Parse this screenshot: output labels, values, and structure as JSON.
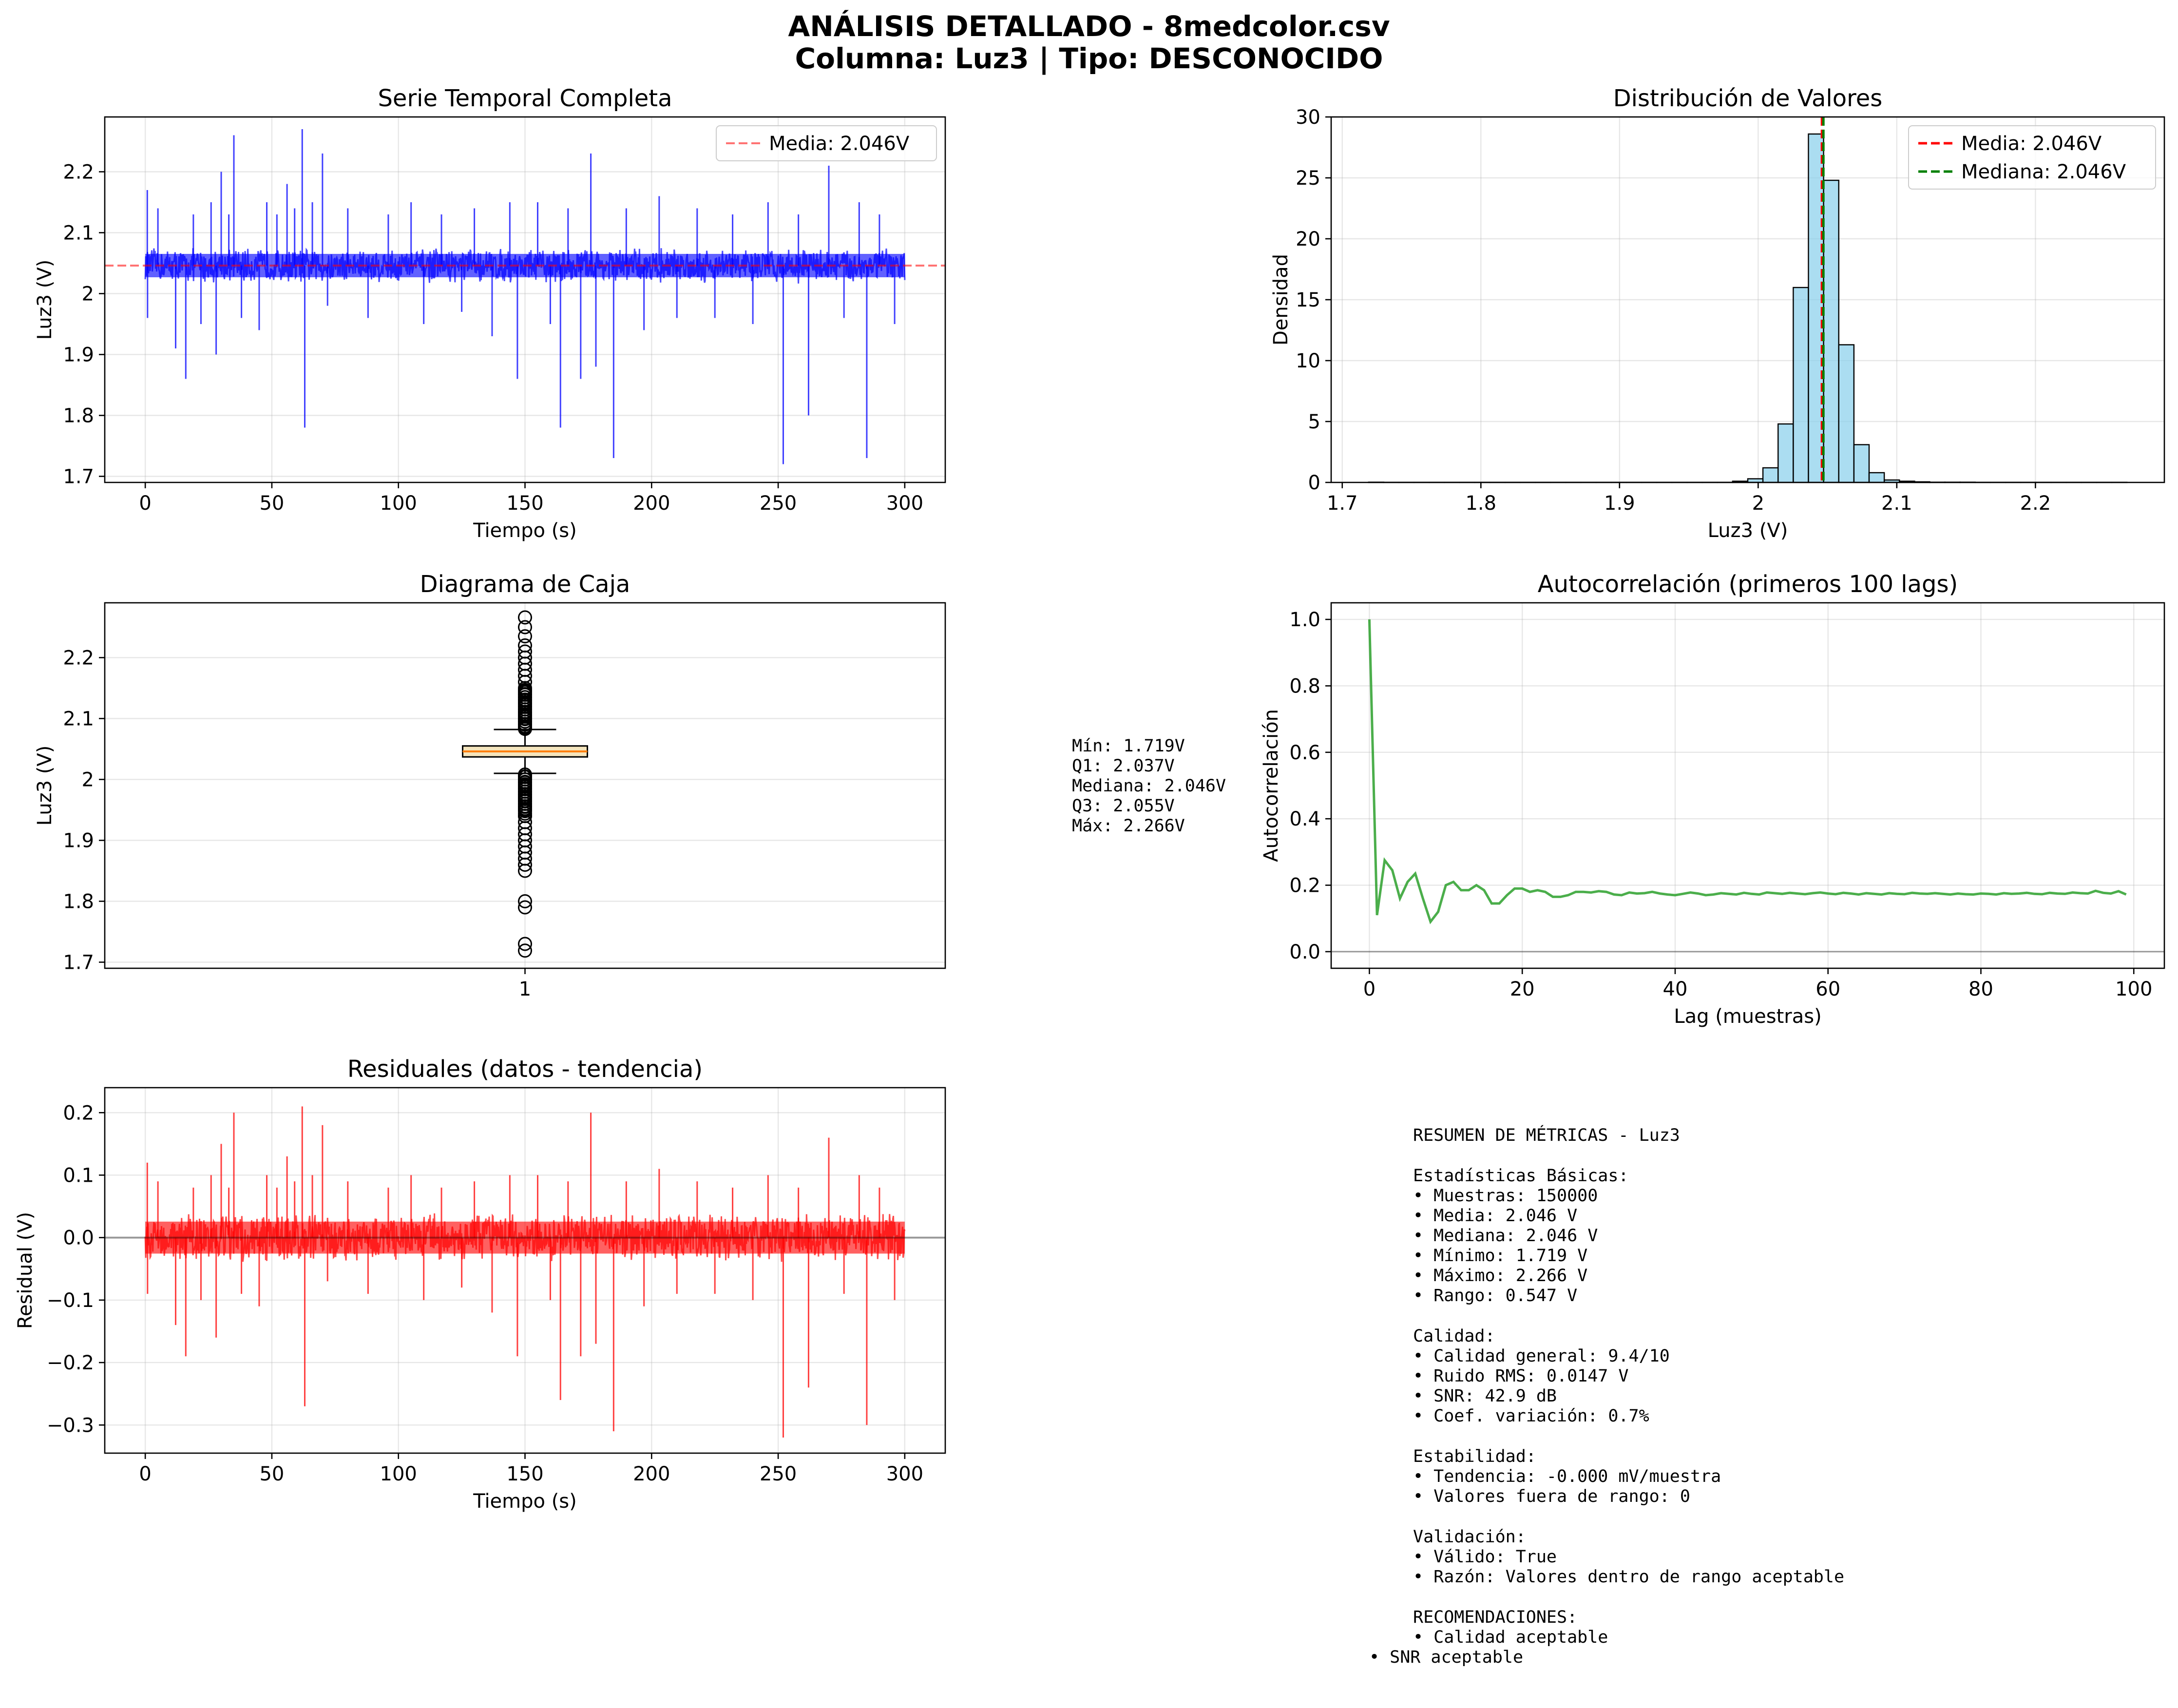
{
  "figure": {
    "title_line1": "ANÁLISIS DETALLADO - 8medcolor.csv",
    "title_line2": "Columna: Luz3 | Tipo: DESCONOCIDO"
  },
  "colors": {
    "series": "#0000ff",
    "histogram": "#87ceeb",
    "mean": "#ff0000",
    "median": "#008000",
    "autocorr": "#2ca02c",
    "residual": "#ff0000",
    "box_fill": "#f4e4bc",
    "box_median": "#ff7f0e"
  },
  "boxplot_stats": [
    "Mín: 1.719V",
    "Q1: 2.037V",
    "Mediana: 2.046V",
    "Q3: 2.055V",
    "Máx: 2.266V"
  ],
  "summary": {
    "title": "RESUMEN DE MÉTRICAS - Luz3",
    "basic_heading": "Estadísticas Básicas:",
    "basic": [
      "• Muestras: 150000",
      "• Media: 2.046 V",
      "• Mediana: 2.046 V",
      "• Mínimo: 1.719 V",
      "• Máximo: 2.266 V",
      "• Rango: 0.547 V"
    ],
    "quality_heading": "Calidad:",
    "quality": [
      "• Calidad general: 9.4/10",
      "• Ruido RMS: 0.0147 V",
      "• SNR: 42.9 dB",
      "• Coef. variación: 0.7%"
    ],
    "stability_heading": "Estabilidad:",
    "stability": [
      "• Tendencia: -0.000 mV/muestra",
      "• Valores fuera de rango: 0"
    ],
    "validation_heading": "Validación:",
    "validation": [
      "• Válido: True",
      "• Razón: Valores dentro de rango aceptable"
    ],
    "recommendations_heading": "RECOMENDACIONES:",
    "recommendations": [
      "• Calidad aceptable",
      "• SNR aceptable"
    ]
  },
  "chart_data": [
    {
      "id": "timeseries",
      "type": "line",
      "title": "Serie Temporal Completa",
      "xlabel": "Tiempo (s)",
      "ylabel": "Luz3 (V)",
      "xlim": [
        -16,
        316
      ],
      "ylim": [
        1.69,
        2.29
      ],
      "xticks": [
        0,
        50,
        100,
        150,
        200,
        250,
        300
      ],
      "yticks": [
        1.7,
        1.8,
        1.9,
        2.0,
        2.1,
        2.2
      ],
      "x_range": [
        0,
        300
      ],
      "mean": 2.046,
      "band": [
        2.02,
        2.08
      ],
      "grid": true,
      "legend_position": "upper right",
      "legend": [
        "Media: 2.046V"
      ],
      "spikes": [
        [
          0.8,
          2.17
        ],
        [
          0.9,
          1.96
        ],
        [
          5,
          2.14
        ],
        [
          12,
          1.91
        ],
        [
          16,
          1.86
        ],
        [
          19,
          2.13
        ],
        [
          22,
          1.95
        ],
        [
          26,
          2.15
        ],
        [
          28,
          1.9
        ],
        [
          30,
          2.2
        ],
        [
          33,
          2.13
        ],
        [
          35,
          2.26
        ],
        [
          38,
          1.96
        ],
        [
          45,
          1.94
        ],
        [
          48,
          2.15
        ],
        [
          52,
          2.13
        ],
        [
          56,
          2.18
        ],
        [
          59,
          2.14
        ],
        [
          62,
          2.27
        ],
        [
          63,
          1.78
        ],
        [
          66,
          2.15
        ],
        [
          70,
          2.23
        ],
        [
          72,
          1.98
        ],
        [
          80,
          2.14
        ],
        [
          88,
          1.96
        ],
        [
          96,
          2.13
        ],
        [
          105,
          2.15
        ],
        [
          110,
          1.95
        ],
        [
          117,
          2.13
        ],
        [
          125,
          1.97
        ],
        [
          130,
          2.14
        ],
        [
          137,
          1.93
        ],
        [
          144,
          2.15
        ],
        [
          147,
          1.86
        ],
        [
          155,
          2.15
        ],
        [
          160,
          1.95
        ],
        [
          164,
          1.78
        ],
        [
          167,
          2.14
        ],
        [
          172,
          1.86
        ],
        [
          176,
          2.23
        ],
        [
          178,
          1.88
        ],
        [
          185,
          1.73
        ],
        [
          190,
          2.14
        ],
        [
          197,
          1.94
        ],
        [
          203,
          2.16
        ],
        [
          210,
          1.96
        ],
        [
          218,
          2.14
        ],
        [
          225,
          1.96
        ],
        [
          232,
          2.13
        ],
        [
          240,
          1.95
        ],
        [
          246,
          2.15
        ],
        [
          252,
          1.72
        ],
        [
          258,
          2.13
        ],
        [
          262,
          1.8
        ],
        [
          270,
          2.21
        ],
        [
          276,
          1.96
        ],
        [
          282,
          2.15
        ],
        [
          285,
          1.73
        ],
        [
          290,
          2.13
        ],
        [
          296,
          1.95
        ]
      ]
    },
    {
      "id": "histogram",
      "type": "bar",
      "title": "Distribución de Valores",
      "xlabel": "Luz3 (V)",
      "ylabel": "Densidad",
      "xlim": [
        1.692,
        2.293
      ],
      "ylim": [
        0,
        30
      ],
      "xticks": [
        1.7,
        1.8,
        1.9,
        2.0,
        2.1,
        2.2
      ],
      "yticks": [
        0,
        5,
        10,
        15,
        20,
        25,
        30
      ],
      "bin_width": 0.01094,
      "bin_start": 1.719,
      "values": [
        0.02,
        0.01,
        0.01,
        0.01,
        0.01,
        0.01,
        0.01,
        0.01,
        0.01,
        0.01,
        0.01,
        0.01,
        0.01,
        0.01,
        0.01,
        0.01,
        0.01,
        0.01,
        0.01,
        0.01,
        0.01,
        0.01,
        0.01,
        0.01,
        0.1,
        0.3,
        1.2,
        4.8,
        16.0,
        28.6,
        24.8,
        11.3,
        3.1,
        0.8,
        0.2,
        0.1,
        0.05,
        0.02,
        0.02,
        0.02,
        0.01,
        0.01,
        0.01,
        0.01,
        0.01,
        0.01,
        0.01,
        0.01,
        0.01,
        0.01
      ],
      "mean": 2.046,
      "median": 2.046,
      "grid": true,
      "legend_position": "upper right",
      "legend": [
        "Media: 2.046V",
        "Mediana: 2.046V"
      ]
    },
    {
      "id": "boxplot",
      "type": "box",
      "title": "Diagrama de Caja",
      "xlabel": "",
      "ylabel": "Luz3 (V)",
      "ylim": [
        1.69,
        2.29
      ],
      "yticks": [
        1.7,
        1.8,
        1.9,
        2.0,
        2.1,
        2.2
      ],
      "category": "1",
      "q1": 2.037,
      "median": 2.046,
      "q3": 2.055,
      "whisker_low": 2.01,
      "whisker_high": 2.082,
      "fliers_high": [
        2.085,
        2.09,
        2.095,
        2.1,
        2.105,
        2.11,
        2.115,
        2.12,
        2.125,
        2.13,
        2.135,
        2.14,
        2.145,
        2.15,
        2.16,
        2.17,
        2.18,
        2.19,
        2.2,
        2.21,
        2.22,
        2.235,
        2.25,
        2.266
      ],
      "fliers_low": [
        2.005,
        2.0,
        1.995,
        1.99,
        1.985,
        1.98,
        1.975,
        1.97,
        1.965,
        1.96,
        1.955,
        1.95,
        1.94,
        1.93,
        1.92,
        1.91,
        1.9,
        1.89,
        1.88,
        1.87,
        1.86,
        1.85,
        1.8,
        1.79,
        1.73,
        1.719
      ],
      "grid": true
    },
    {
      "id": "autocorr",
      "type": "line",
      "title": "Autocorrelación (primeros 100 lags)",
      "xlabel": "Lag (muestras)",
      "ylabel": "Autocorrelación",
      "xlim": [
        -5,
        104
      ],
      "ylim": [
        -0.05,
        1.05
      ],
      "xticks": [
        0,
        20,
        40,
        60,
        80,
        100
      ],
      "yticks": [
        0.0,
        0.2,
        0.4,
        0.6,
        0.8,
        1.0
      ],
      "values": [
        1.0,
        0.11,
        0.275,
        0.245,
        0.16,
        0.21,
        0.235,
        0.16,
        0.09,
        0.12,
        0.2,
        0.21,
        0.185,
        0.185,
        0.2,
        0.185,
        0.145,
        0.145,
        0.17,
        0.19,
        0.19,
        0.18,
        0.185,
        0.18,
        0.165,
        0.165,
        0.17,
        0.18,
        0.18,
        0.178,
        0.182,
        0.18,
        0.172,
        0.17,
        0.178,
        0.175,
        0.176,
        0.18,
        0.175,
        0.172,
        0.17,
        0.174,
        0.178,
        0.175,
        0.17,
        0.172,
        0.176,
        0.174,
        0.172,
        0.177,
        0.174,
        0.172,
        0.178,
        0.176,
        0.174,
        0.177,
        0.175,
        0.173,
        0.176,
        0.178,
        0.175,
        0.173,
        0.177,
        0.175,
        0.172,
        0.176,
        0.174,
        0.172,
        0.176,
        0.174,
        0.173,
        0.177,
        0.175,
        0.174,
        0.176,
        0.174,
        0.172,
        0.175,
        0.173,
        0.172,
        0.175,
        0.174,
        0.172,
        0.176,
        0.174,
        0.175,
        0.177,
        0.174,
        0.173,
        0.177,
        0.175,
        0.174,
        0.178,
        0.176,
        0.175,
        0.183,
        0.177,
        0.175,
        0.182,
        0.172
      ],
      "grid": true
    },
    {
      "id": "residuals",
      "type": "line",
      "title": "Residuales (datos - tendencia)",
      "xlabel": "Tiempo (s)",
      "ylabel": "Residual (V)",
      "xlim": [
        -16,
        316
      ],
      "ylim": [
        -0.345,
        0.24
      ],
      "xticks": [
        0,
        50,
        100,
        150,
        200,
        250,
        300
      ],
      "yticks": [
        -0.3,
        -0.2,
        -0.1,
        0.0,
        0.1,
        0.2
      ],
      "x_range": [
        0,
        300
      ],
      "band": [
        -0.04,
        0.04
      ],
      "grid": true,
      "spikes": [
        [
          0.8,
          0.12
        ],
        [
          0.9,
          -0.09
        ],
        [
          5,
          0.09
        ],
        [
          12,
          -0.14
        ],
        [
          16,
          -0.19
        ],
        [
          19,
          0.08
        ],
        [
          22,
          -0.1
        ],
        [
          26,
          0.1
        ],
        [
          28,
          -0.16
        ],
        [
          30,
          0.15
        ],
        [
          33,
          0.08
        ],
        [
          35,
          0.2
        ],
        [
          38,
          -0.09
        ],
        [
          45,
          -0.11
        ],
        [
          48,
          0.1
        ],
        [
          52,
          0.08
        ],
        [
          56,
          0.13
        ],
        [
          59,
          0.09
        ],
        [
          62,
          0.21
        ],
        [
          63,
          -0.27
        ],
        [
          66,
          0.1
        ],
        [
          70,
          0.18
        ],
        [
          72,
          -0.07
        ],
        [
          80,
          0.09
        ],
        [
          88,
          -0.09
        ],
        [
          96,
          0.08
        ],
        [
          105,
          0.1
        ],
        [
          110,
          -0.1
        ],
        [
          117,
          0.08
        ],
        [
          125,
          -0.08
        ],
        [
          130,
          0.09
        ],
        [
          137,
          -0.12
        ],
        [
          144,
          0.1
        ],
        [
          147,
          -0.19
        ],
        [
          155,
          0.1
        ],
        [
          160,
          -0.1
        ],
        [
          164,
          -0.26
        ],
        [
          167,
          0.09
        ],
        [
          172,
          -0.19
        ],
        [
          176,
          0.2
        ],
        [
          178,
          -0.17
        ],
        [
          185,
          -0.31
        ],
        [
          190,
          0.09
        ],
        [
          197,
          -0.11
        ],
        [
          203,
          0.11
        ],
        [
          210,
          -0.09
        ],
        [
          218,
          0.09
        ],
        [
          225,
          -0.09
        ],
        [
          232,
          0.08
        ],
        [
          240,
          -0.1
        ],
        [
          246,
          0.1
        ],
        [
          252,
          -0.32
        ],
        [
          258,
          0.08
        ],
        [
          262,
          -0.24
        ],
        [
          270,
          0.16
        ],
        [
          276,
          -0.09
        ],
        [
          282,
          0.1
        ],
        [
          285,
          -0.3
        ],
        [
          290,
          0.08
        ],
        [
          296,
          -0.1
        ]
      ]
    }
  ]
}
